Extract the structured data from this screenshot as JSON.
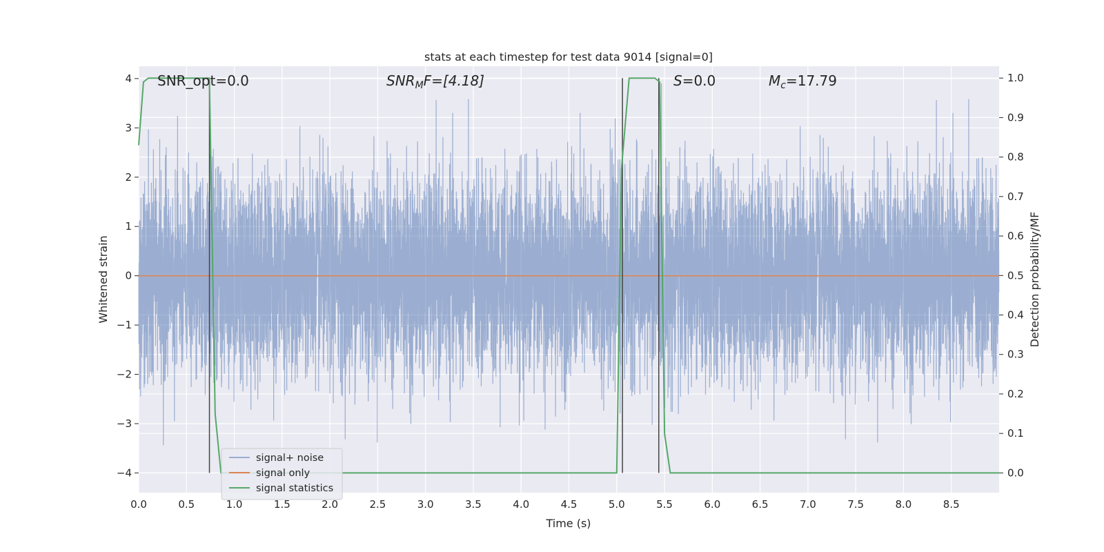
{
  "chart_data": {
    "type": "line",
    "title": "stats at each timestep for test data 9014 [signal=0]",
    "xlabel": "Time (s)",
    "ylabel": "Whitened strain",
    "ylabel_right": "Detection probability/MF",
    "xlim": [
      0.0,
      9.0
    ],
    "ylim": [
      -4.4,
      4.25
    ],
    "ylim_right": [
      -0.05,
      1.03
    ],
    "x_ticks": [
      "0.0",
      "0.5",
      "1.0",
      "1.5",
      "2.0",
      "2.5",
      "3.0",
      "3.5",
      "4.0",
      "4.5",
      "5.0",
      "5.5",
      "6.0",
      "6.5",
      "7.0",
      "7.5",
      "8.0",
      "8.5"
    ],
    "y_ticks": [
      "4",
      "3",
      "2",
      "1",
      "0",
      "−1",
      "−2",
      "−3",
      "−4"
    ],
    "y_ticks_right": [
      "1.0",
      "0.9",
      "0.8",
      "0.7",
      "0.6",
      "0.5",
      "0.4",
      "0.3",
      "0.2",
      "0.1",
      "0.0"
    ],
    "grid": true,
    "legend_position": "lower-left",
    "annotations": {
      "snr_opt": "SNR_opt=0.0",
      "snr_mf_prefix": "SNR",
      "snr_mf_sub": "M",
      "snr_mf_suffix": "F=[4.18]",
      "s_prefix": "S",
      "s_suffix": "=0.0",
      "mc_prefix": "M",
      "mc_sub": "c",
      "mc_suffix": "=17.79"
    },
    "series": [
      {
        "name": "signal+ noise",
        "color": "#4c72b0",
        "opacity": 0.5,
        "description_values": {
          "sample_rate_hz": 1000,
          "approx_std": 1.0,
          "range": [
            -3.95,
            3.9
          ]
        }
      },
      {
        "name": "signal only",
        "color": "#dd8452",
        "x": [
          0.0,
          9.0
        ],
        "y": [
          0.0,
          0.0
        ]
      },
      {
        "name": "signal statistics",
        "color": "#55a868",
        "axis": "right",
        "x": [
          0.0,
          0.05,
          0.1,
          0.2,
          0.3,
          0.4,
          0.5,
          0.6,
          0.7,
          0.74,
          0.8,
          0.86,
          0.9,
          1.0,
          2.0,
          3.0,
          4.0,
          4.5,
          5.0,
          5.05,
          5.13,
          5.2,
          5.3,
          5.4,
          5.45,
          5.5,
          5.56,
          6.0,
          7.0,
          8.0,
          9.0
        ],
        "y": [
          0.83,
          0.99,
          1.0,
          1.0,
          1.0,
          1.0,
          1.0,
          1.0,
          1.0,
          1.0,
          0.15,
          0.0,
          0.0,
          0.0,
          0.0,
          0.0,
          0.0,
          0.0,
          0.0,
          0.77,
          1.0,
          1.0,
          1.0,
          1.0,
          0.99,
          0.1,
          0.0,
          0.0,
          0.0,
          0.0,
          0.0
        ]
      }
    ],
    "vertical_lines_x": [
      0.74,
      5.06,
      5.44
    ],
    "vertical_lines_color": "#444444"
  }
}
